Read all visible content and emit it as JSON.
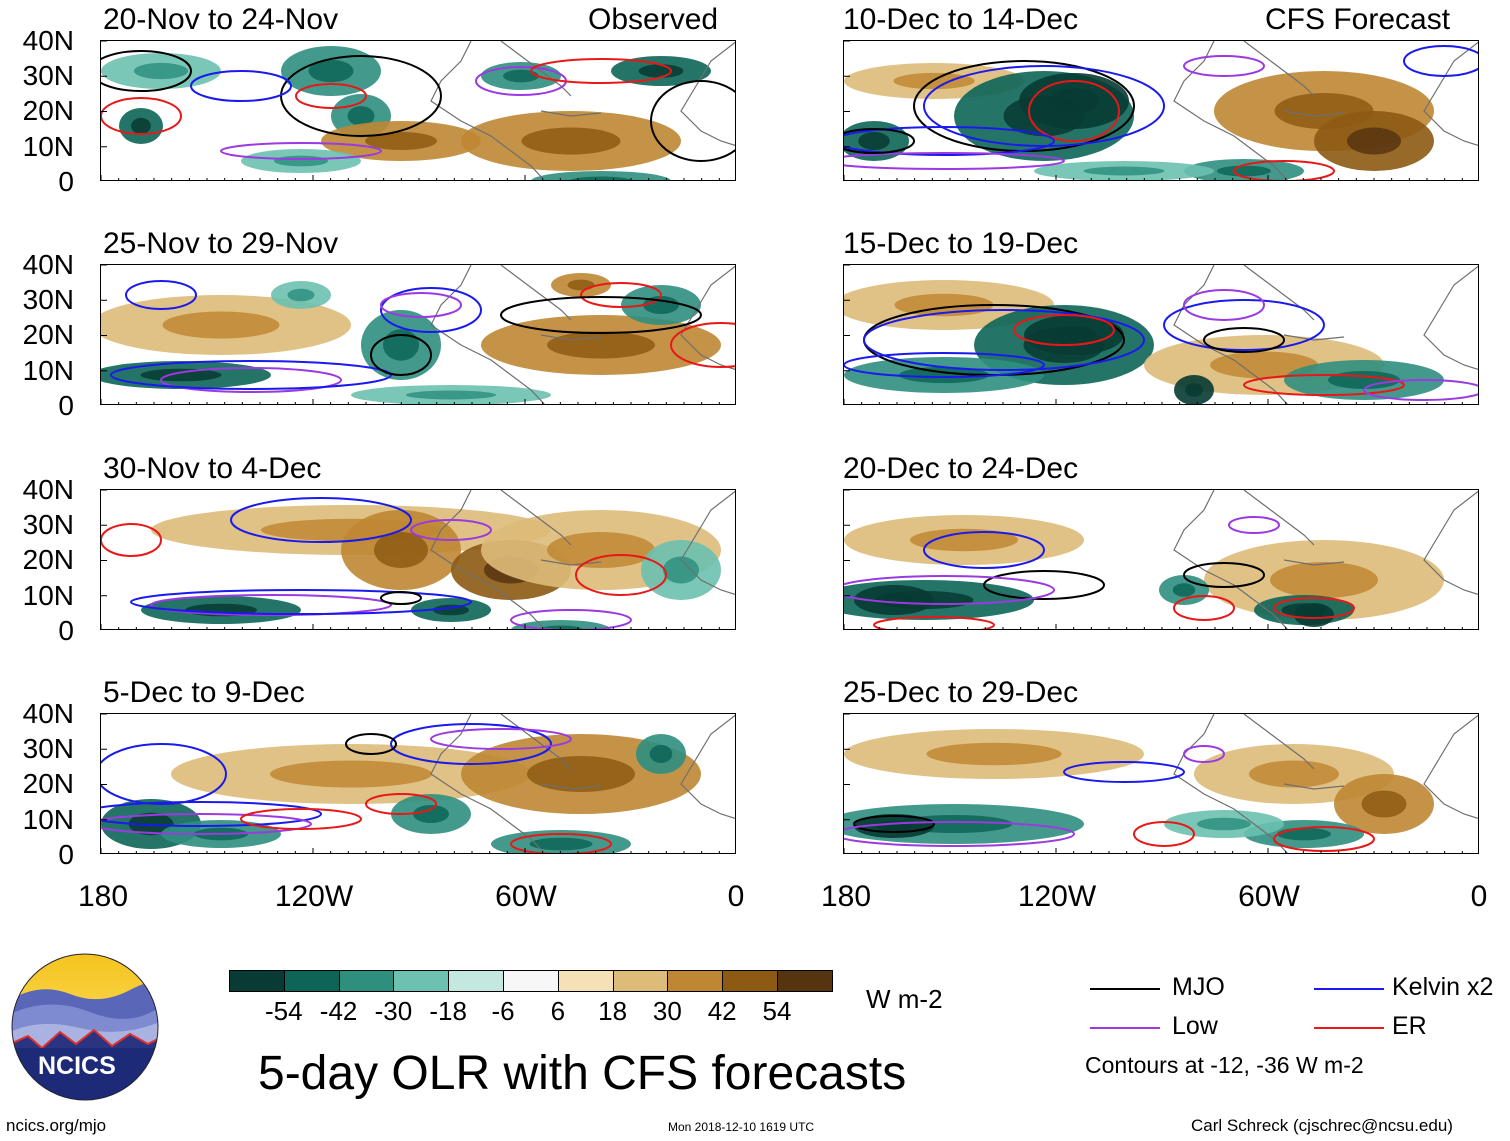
{
  "chart_data": {
    "type": "heatmap",
    "title": "5-day OLR with CFS forecasts",
    "column_labels": [
      "Observed",
      "CFS Forecast"
    ],
    "units": "W m-2",
    "ytick_labels": [
      "40N",
      "30N",
      "20N",
      "10N",
      "0"
    ],
    "xtick_labels": [
      "180",
      "120W",
      "60W",
      "0"
    ],
    "colorbar": {
      "labels": [
        "-54",
        "-42",
        "-30",
        "-18",
        "-6",
        "6",
        "18",
        "30",
        "42",
        "54"
      ],
      "colors": [
        "#073b33",
        "#0d6558",
        "#2f8f7f",
        "#6cc1b0",
        "#c2e8df",
        "#f7f7f7",
        "#f4e2b6",
        "#ddbb79",
        "#bf8733",
        "#8c5a13",
        "#573410"
      ]
    },
    "panels": [
      {
        "title": "20-Nov to 24-Nov"
      },
      {
        "title": "25-Nov to 29-Nov"
      },
      {
        "title": "30-Nov to 4-Dec"
      },
      {
        "title": "5-Dec to 9-Dec"
      },
      {
        "title": "10-Dec to 14-Dec"
      },
      {
        "title": "15-Dec to 19-Dec"
      },
      {
        "title": "20-Dec to 24-Dec"
      },
      {
        "title": "25-Dec to 29-Dec"
      }
    ],
    "legend": [
      {
        "label": "MJO",
        "color": "#000000"
      },
      {
        "label": "Kelvin x2",
        "color": "#1a1aee"
      },
      {
        "label": "Low",
        "color": "#9a3ae0"
      },
      {
        "label": "ER",
        "color": "#e81818"
      }
    ],
    "contour_note": "Contours at -12, -36 W m-2"
  },
  "logo": {
    "text": "NCICS"
  },
  "footer": {
    "url": "ncics.org/mjo",
    "timestamp": "Mon 2018-12-10 1619 UTC",
    "credit": "Carl Schreck (cjschrec@ncsu.edu)"
  }
}
